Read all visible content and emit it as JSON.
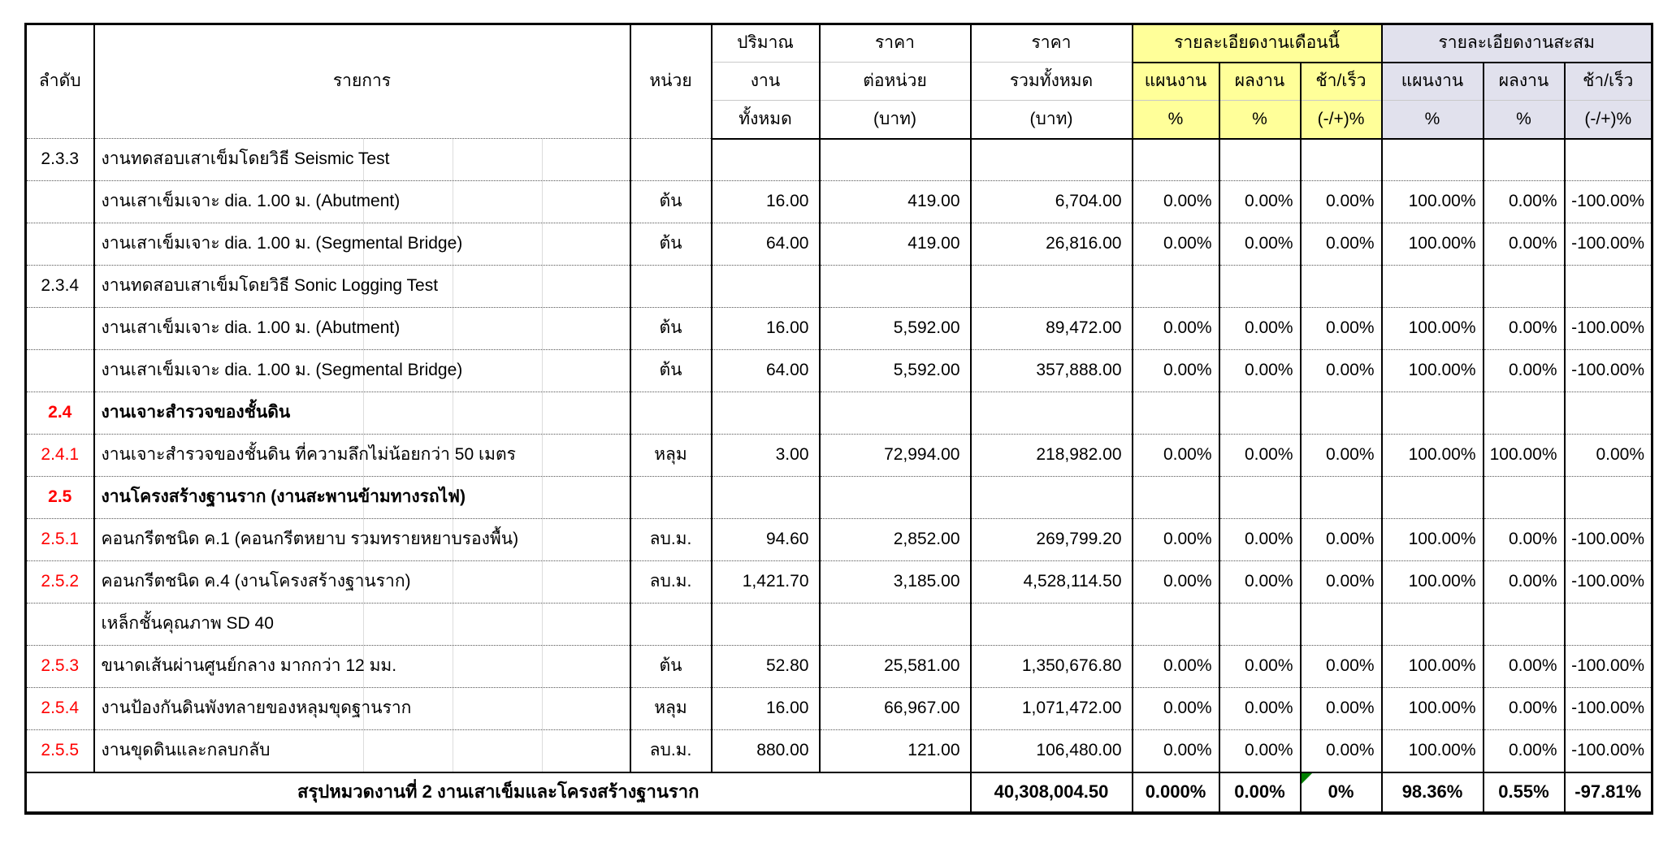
{
  "colors": {
    "month_header_bg": "#FFFF99",
    "cum_header_bg": "#E1E1ED",
    "section_number_color": "#FF0000",
    "comment_triangle_color": "#008000"
  },
  "table": {
    "header": {
      "no": "ลำดับ",
      "item": "รายการ",
      "unit": "หน่วย",
      "qty": [
        "ปริมาณ",
        "งาน",
        "ทั้งหมด"
      ],
      "unit_price": [
        "ราคา",
        "ต่อหน่วย",
        "(บาท)"
      ],
      "total": [
        "ราคา",
        "รวมทั้งหมด",
        "(บาท)"
      ],
      "month_group": "รายละเอียดงานเดือนนี้",
      "cum_group": "รายละเอียดงานสะสม",
      "plan": "แผนงาน",
      "actual": "ผลงาน",
      "diff": "ช้า/เร็ว",
      "pct": "%",
      "diff_pct": "(-/+)%"
    },
    "rows": [
      {
        "no": "2.3.3",
        "red": false,
        "bold": false,
        "desc": "งานทดสอบเสาเข็มโดยวิธี Seismic Test",
        "unit": "",
        "qty": "",
        "unit_price": "",
        "total": "",
        "m_plan": "",
        "m_actual": "",
        "m_diff": "",
        "c_plan": "",
        "c_actual": "",
        "c_diff": ""
      },
      {
        "no": "",
        "red": false,
        "bold": false,
        "desc": "งานเสาเข็มเจาะ dia. 1.00 ม.  (Abutment)",
        "unit": "ต้น",
        "qty": "16.00",
        "unit_price": "419.00",
        "total": "6,704.00",
        "m_plan": "0.00%",
        "m_actual": "0.00%",
        "m_diff": "0.00%",
        "c_plan": "100.00%",
        "c_actual": "0.00%",
        "c_diff": "-100.00%"
      },
      {
        "no": "",
        "red": false,
        "bold": false,
        "desc": "งานเสาเข็มเจาะ dia. 1.00 ม.  (Segmental Bridge)",
        "unit": "ต้น",
        "qty": "64.00",
        "unit_price": "419.00",
        "total": "26,816.00",
        "m_plan": "0.00%",
        "m_actual": "0.00%",
        "m_diff": "0.00%",
        "c_plan": "100.00%",
        "c_actual": "0.00%",
        "c_diff": "-100.00%"
      },
      {
        "no": "2.3.4",
        "red": false,
        "bold": false,
        "desc": "งานทดสอบเสาเข็มโดยวิธี Sonic Logging Test",
        "unit": "",
        "qty": "",
        "unit_price": "",
        "total": "",
        "m_plan": "",
        "m_actual": "",
        "m_diff": "",
        "c_plan": "",
        "c_actual": "",
        "c_diff": ""
      },
      {
        "no": "",
        "red": false,
        "bold": false,
        "desc": "งานเสาเข็มเจาะ dia. 1.00 ม.  (Abutment)",
        "unit": "ต้น",
        "qty": "16.00",
        "unit_price": "5,592.00",
        "total": "89,472.00",
        "m_plan": "0.00%",
        "m_actual": "0.00%",
        "m_diff": "0.00%",
        "c_plan": "100.00%",
        "c_actual": "0.00%",
        "c_diff": "-100.00%"
      },
      {
        "no": "",
        "red": false,
        "bold": false,
        "desc": "งานเสาเข็มเจาะ dia. 1.00 ม.  (Segmental Bridge)",
        "unit": "ต้น",
        "qty": "64.00",
        "unit_price": "5,592.00",
        "total": "357,888.00",
        "m_plan": "0.00%",
        "m_actual": "0.00%",
        "m_diff": "0.00%",
        "c_plan": "100.00%",
        "c_actual": "0.00%",
        "c_diff": "-100.00%"
      },
      {
        "no": "2.4",
        "red": true,
        "bold": true,
        "desc": "งานเจาะสำรวจของชั้นดิน",
        "unit": "",
        "qty": "",
        "unit_price": "",
        "total": "",
        "m_plan": "",
        "m_actual": "",
        "m_diff": "",
        "c_plan": "",
        "c_actual": "",
        "c_diff": ""
      },
      {
        "no": "2.4.1",
        "red": true,
        "bold": false,
        "desc": "งานเจาะสำรวจของชั้นดิน ที่ความลึกไม่น้อยกว่า 50 เมตร",
        "unit": "หลุม",
        "qty": "3.00",
        "unit_price": "72,994.00",
        "total": "218,982.00",
        "m_plan": "0.00%",
        "m_actual": "0.00%",
        "m_diff": "0.00%",
        "c_plan": "100.00%",
        "c_actual": "100.00%",
        "c_diff": "0.00%"
      },
      {
        "no": "2.5",
        "red": true,
        "bold": true,
        "desc": "งานโครงสร้างฐานราก (งานสะพานข้ามทางรถไฟ)",
        "unit": "",
        "qty": "",
        "unit_price": "",
        "total": "",
        "m_plan": "",
        "m_actual": "",
        "m_diff": "",
        "c_plan": "",
        "c_actual": "",
        "c_diff": ""
      },
      {
        "no": "2.5.1",
        "red": true,
        "bold": false,
        "desc": "คอนกรีตชนิด ค.1 (คอนกรีตหยาบ รวมทรายหยาบรองพื้น)",
        "unit": "ลบ.ม.",
        "qty": "94.60",
        "unit_price": "2,852.00",
        "total": "269,799.20",
        "m_plan": "0.00%",
        "m_actual": "0.00%",
        "m_diff": "0.00%",
        "c_plan": "100.00%",
        "c_actual": "0.00%",
        "c_diff": "-100.00%"
      },
      {
        "no": "2.5.2",
        "red": true,
        "bold": false,
        "desc": "คอนกรีตชนิด ค.4 (งานโครงสร้างฐานราก)",
        "unit": "ลบ.ม.",
        "qty": "1,421.70",
        "unit_price": "3,185.00",
        "total": "4,528,114.50",
        "m_plan": "0.00%",
        "m_actual": "0.00%",
        "m_diff": "0.00%",
        "c_plan": "100.00%",
        "c_actual": "0.00%",
        "c_diff": "-100.00%"
      },
      {
        "no": "",
        "red": false,
        "bold": false,
        "desc": "เหล็กชั้นคุณภาพ SD 40",
        "unit": "",
        "qty": "",
        "unit_price": "",
        "total": "",
        "m_plan": "",
        "m_actual": "",
        "m_diff": "",
        "c_plan": "",
        "c_actual": "",
        "c_diff": ""
      },
      {
        "no": "2.5.3",
        "red": true,
        "bold": false,
        "desc": "ขนาดเส้นผ่านศูนย์กลาง มากกว่า 12 มม.",
        "unit": "ต้น",
        "qty": "52.80",
        "unit_price": "25,581.00",
        "total": "1,350,676.80",
        "m_plan": "0.00%",
        "m_actual": "0.00%",
        "m_diff": "0.00%",
        "c_plan": "100.00%",
        "c_actual": "0.00%",
        "c_diff": "-100.00%"
      },
      {
        "no": "2.5.4",
        "red": true,
        "bold": false,
        "desc": "งานป้องกันดินพังทลายของหลุมขุดฐานราก",
        "unit": "หลุม",
        "qty": "16.00",
        "unit_price": "66,967.00",
        "total": "1,071,472.00",
        "m_plan": "0.00%",
        "m_actual": "0.00%",
        "m_diff": "0.00%",
        "c_plan": "100.00%",
        "c_actual": "0.00%",
        "c_diff": "-100.00%"
      },
      {
        "no": "2.5.5",
        "red": true,
        "bold": false,
        "desc": "งานขุดดินและกลบกลับ",
        "unit": "ลบ.ม.",
        "qty": "880.00",
        "unit_price": "121.00",
        "total": "106,480.00",
        "m_plan": "0.00%",
        "m_actual": "0.00%",
        "m_diff": "0.00%",
        "c_plan": "100.00%",
        "c_actual": "0.00%",
        "c_diff": "-100.00%"
      }
    ],
    "summary": {
      "label": "สรุปหมวดงานที่ 2 งานเสาเข็มและโครงสร้างฐานราก",
      "total": "40,308,004.50",
      "m_plan": "0.000%",
      "m_actual": "0.00%",
      "m_diff": "0%",
      "c_plan": "98.36%",
      "c_actual": "0.55%",
      "c_diff": "-97.81%",
      "has_comment_flag_on": "m_diff"
    }
  }
}
